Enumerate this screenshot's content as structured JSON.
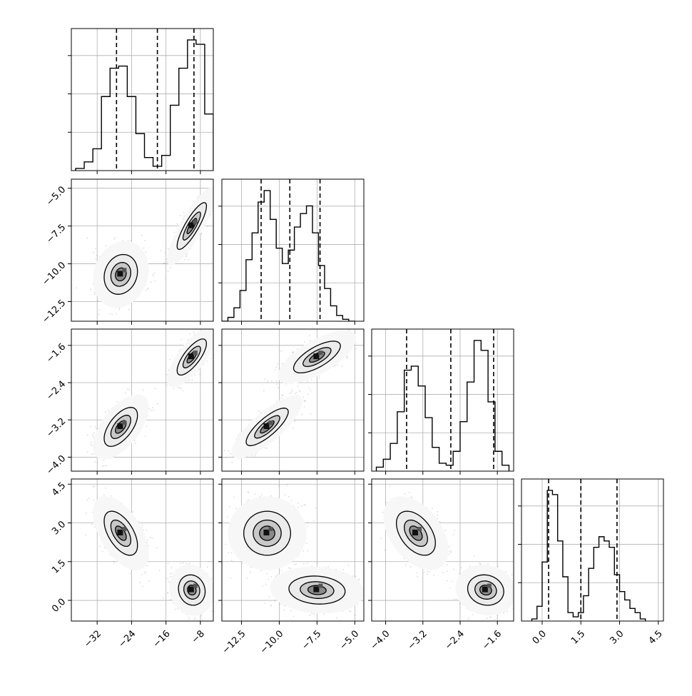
{
  "chart_data": {
    "type": "corner",
    "title": "",
    "parameters": [
      {
        "index": 0,
        "range": [
          -38,
          -5
        ],
        "ticks": [
          -32,
          -24,
          -16,
          -8
        ],
        "tick_labels": [
          "−32",
          "−24",
          "−16",
          "−8"
        ],
        "quantiles": [
          -27.5,
          -18.0,
          -9.5
        ],
        "modes": [
          {
            "mean": -26.5,
            "sd": 2.3,
            "w": 0.5
          },
          {
            "mean": -10.0,
            "sd": 2.2,
            "w": 0.5
          }
        ],
        "histogram": {
          "bin_edges": [
            -37,
            -35,
            -33,
            -31,
            -29,
            -27,
            -25,
            -23,
            -21,
            -19,
            -17,
            -15,
            -13,
            -11,
            -9,
            -7,
            -5
          ],
          "counts": [
            0.01,
            0.04,
            0.1,
            0.34,
            0.47,
            0.48,
            0.34,
            0.17,
            0.06,
            0.02,
            0.07,
            0.3,
            0.47,
            0.6,
            0.58,
            0.26
          ]
        }
      },
      {
        "index": 1,
        "range": [
          -13.8,
          -4.4
        ],
        "ticks": [
          -12.5,
          -10.0,
          -7.5,
          -5.0
        ],
        "tick_labels": [
          "−12.5",
          "−10.0",
          "−7.5",
          "−5.0"
        ],
        "quantiles": [
          -11.2,
          -9.3,
          -7.3
        ],
        "modes": [
          {
            "mean": -10.8,
            "sd": 1.0,
            "w": 0.5
          },
          {
            "mean": -7.5,
            "sd": 1.0,
            "w": 0.5
          }
        ],
        "histogram": {
          "bin_edges": [
            -13.8,
            -13.4,
            -13.0,
            -12.6,
            -12.2,
            -11.8,
            -11.4,
            -11.0,
            -10.6,
            -10.2,
            -9.8,
            -9.4,
            -9.0,
            -8.6,
            -8.2,
            -7.8,
            -7.4,
            -7.0,
            -6.6,
            -6.2,
            -5.8,
            -5.4,
            -5.0
          ],
          "counts": [
            0.0,
            0.02,
            0.07,
            0.16,
            0.32,
            0.46,
            0.62,
            0.68,
            0.53,
            0.38,
            0.3,
            0.37,
            0.49,
            0.56,
            0.6,
            0.46,
            0.29,
            0.17,
            0.08,
            0.03,
            0.01,
            0.0
          ]
        }
      },
      {
        "index": 2,
        "range": [
          -4.3,
          -1.25
        ],
        "ticks": [
          -4.0,
          -3.2,
          -2.4,
          -1.6
        ],
        "tick_labels": [
          "−4.0",
          "−3.2",
          "−2.4",
          "−1.6"
        ],
        "quantiles": [
          -3.55,
          -2.6,
          -1.68
        ],
        "modes": [
          {
            "mean": -3.35,
            "sd": 0.28,
            "w": 0.5
          },
          {
            "mean": -1.85,
            "sd": 0.26,
            "w": 0.5
          }
        ],
        "histogram": {
          "bin_edges": [
            -4.2,
            -4.05,
            -3.9,
            -3.75,
            -3.6,
            -3.45,
            -3.3,
            -3.15,
            -3.0,
            -2.85,
            -2.7,
            -2.55,
            -2.4,
            -2.25,
            -2.1,
            -1.95,
            -1.8,
            -1.65,
            -1.5,
            -1.35
          ],
          "counts": [
            0.02,
            0.06,
            0.14,
            0.3,
            0.51,
            0.53,
            0.43,
            0.27,
            0.12,
            0.04,
            0.03,
            0.1,
            0.25,
            0.45,
            0.66,
            0.61,
            0.35,
            0.1,
            0.03
          ]
        }
      },
      {
        "index": 3,
        "range": [
          -0.8,
          4.7
        ],
        "ticks": [
          0.0,
          1.5,
          3.0,
          4.5
        ],
        "tick_labels": [
          "0.0",
          "1.5",
          "3.0",
          "4.5"
        ],
        "quantiles": [
          0.25,
          1.5,
          2.9
        ],
        "modes": [
          {
            "mean": 0.4,
            "sd": 0.35,
            "w": 0.5
          },
          {
            "mean": 2.6,
            "sd": 0.55,
            "w": 0.5
          }
        ],
        "histogram": {
          "bin_edges": [
            -0.4,
            -0.2,
            0.0,
            0.2,
            0.4,
            0.6,
            0.8,
            1.0,
            1.2,
            1.4,
            1.6,
            1.8,
            2.0,
            2.2,
            2.4,
            2.6,
            2.8,
            3.0,
            3.2,
            3.4,
            3.6,
            3.8,
            4.0
          ],
          "counts": [
            0.01,
            0.07,
            0.28,
            0.62,
            0.6,
            0.38,
            0.21,
            0.04,
            0.02,
            0.04,
            0.12,
            0.25,
            0.35,
            0.4,
            0.38,
            0.35,
            0.22,
            0.14,
            0.1,
            0.06,
            0.04,
            0.01
          ]
        }
      }
    ],
    "pairs": [
      {
        "i": 1,
        "j": 0,
        "blobs": [
          {
            "cx": -26.5,
            "cy": -10.7,
            "sx": 2.5,
            "sy": 0.85,
            "rho": 0.15
          },
          {
            "cx": -10.0,
            "cy": -7.5,
            "sx": 2.2,
            "sy": 1.0,
            "rho": 0.85
          }
        ]
      },
      {
        "i": 2,
        "j": 0,
        "blobs": [
          {
            "cx": -26.5,
            "cy": -3.35,
            "sx": 2.5,
            "sy": 0.27,
            "rho": 0.6
          },
          {
            "cx": -10.0,
            "cy": -1.85,
            "sx": 2.2,
            "sy": 0.25,
            "rho": 0.75
          }
        ]
      },
      {
        "i": 2,
        "j": 1,
        "blobs": [
          {
            "cx": -10.8,
            "cy": -3.35,
            "sx": 0.9,
            "sy": 0.26,
            "rho": 0.8
          },
          {
            "cx": -7.5,
            "cy": -1.85,
            "sx": 1.0,
            "sy": 0.22,
            "rho": 0.7
          }
        ]
      },
      {
        "i": 3,
        "j": 0,
        "blobs": [
          {
            "cx": -26.5,
            "cy": 2.6,
            "sx": 2.5,
            "sy": 0.55,
            "rho": -0.55
          },
          {
            "cx": -10.0,
            "cy": 0.4,
            "sx": 2.0,
            "sy": 0.38,
            "rho": -0.1
          }
        ]
      },
      {
        "i": 3,
        "j": 1,
        "blobs": [
          {
            "cx": -10.8,
            "cy": 2.6,
            "sx": 1.0,
            "sy": 0.55,
            "rho": 0.0
          },
          {
            "cx": -7.5,
            "cy": 0.4,
            "sx": 1.2,
            "sy": 0.35,
            "rho": -0.1
          }
        ]
      },
      {
        "i": 3,
        "j": 2,
        "blobs": [
          {
            "cx": -3.35,
            "cy": 2.6,
            "sx": 0.27,
            "sy": 0.55,
            "rho": -0.45
          },
          {
            "cx": -1.85,
            "cy": 0.4,
            "sx": 0.25,
            "sy": 0.38,
            "rho": -0.1
          }
        ]
      }
    ],
    "grid": true,
    "contour_levels": [
      0.12,
      0.35,
      0.7
    ],
    "colors": {
      "line": "#000000",
      "grid": "#b0b0b0",
      "fill_light": "#ececec",
      "fill_mid": "#c8c8c8",
      "fill_dark": "#8a8a8a",
      "pixel_dark": "#111111",
      "scatter": "#9a9a9a"
    }
  }
}
